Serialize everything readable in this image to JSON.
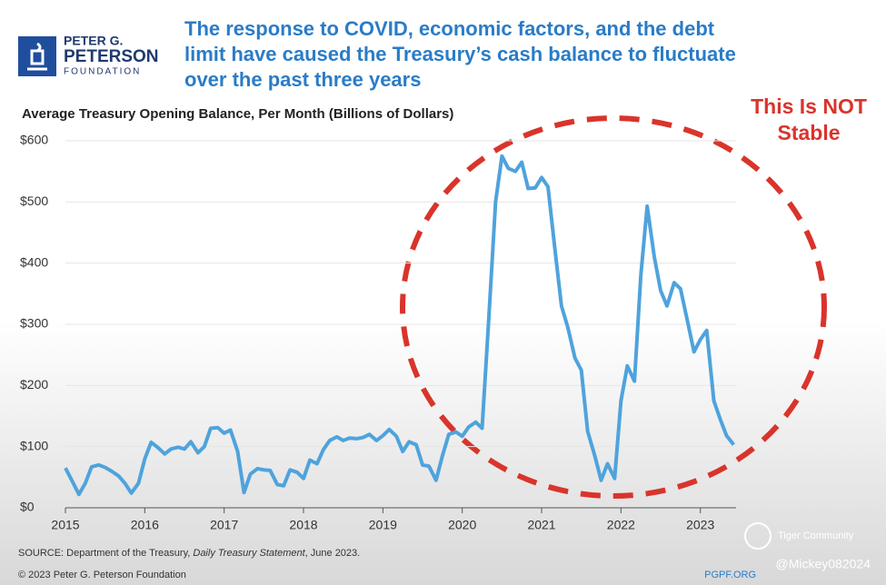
{
  "logo": {
    "line1": "PETER G.",
    "line2": "PETERSON",
    "line3": "FOUNDATION"
  },
  "chart_data": {
    "type": "line",
    "title": "The response to COVID, economic factors, and the debt limit have caused the Treasury’s cash balance to fluctuate over the past three years",
    "subtitle": "Average Treasury Opening Balance, Per Month (Billions of Dollars)",
    "annotation": "This Is NOT Stable",
    "x": [
      2015.0,
      2015.08,
      2015.17,
      2015.25,
      2015.33,
      2015.42,
      2015.5,
      2015.58,
      2015.67,
      2015.75,
      2015.83,
      2015.92,
      2016.0,
      2016.08,
      2016.17,
      2016.25,
      2016.33,
      2016.42,
      2016.5,
      2016.58,
      2016.67,
      2016.75,
      2016.83,
      2016.92,
      2017.0,
      2017.08,
      2017.17,
      2017.25,
      2017.33,
      2017.42,
      2017.5,
      2017.58,
      2017.67,
      2017.75,
      2017.83,
      2017.92,
      2018.0,
      2018.08,
      2018.17,
      2018.25,
      2018.33,
      2018.42,
      2018.5,
      2018.58,
      2018.67,
      2018.75,
      2018.83,
      2018.92,
      2019.0,
      2019.08,
      2019.17,
      2019.25,
      2019.33,
      2019.42,
      2019.5,
      2019.58,
      2019.67,
      2019.75,
      2019.83,
      2019.92,
      2020.0,
      2020.08,
      2020.17,
      2020.25,
      2020.33,
      2020.42,
      2020.5,
      2020.58,
      2020.67,
      2020.75,
      2020.83,
      2020.92,
      2021.0,
      2021.08,
      2021.17,
      2021.25,
      2021.33,
      2021.42,
      2021.5,
      2021.58,
      2021.67,
      2021.75,
      2021.83,
      2021.92,
      2022.0,
      2022.08,
      2022.17,
      2022.25,
      2022.33,
      2022.42,
      2022.5,
      2022.58,
      2022.67,
      2022.75,
      2022.83,
      2022.92,
      2023.0,
      2023.08,
      2023.17,
      2023.25,
      2023.33,
      2023.42
    ],
    "series": [
      {
        "color": "#4fa3dc",
        "values": [
          65,
          45,
          22,
          40,
          67,
          70,
          66,
          60,
          52,
          40,
          24,
          40,
          80,
          107,
          98,
          88,
          96,
          99,
          96,
          108,
          90,
          100,
          130,
          131,
          122,
          127,
          92,
          25,
          55,
          64,
          62,
          61,
          38,
          36,
          62,
          58,
          48,
          78,
          72,
          95,
          110,
          116,
          110,
          114,
          113,
          115,
          120,
          110,
          118,
          128,
          117,
          92,
          108,
          103,
          70,
          68,
          45,
          85,
          120,
          124,
          117,
          132,
          140,
          130,
          300,
          500,
          575,
          555,
          550,
          565,
          522,
          523,
          540,
          525,
          420,
          330,
          295,
          245,
          225,
          125,
          85,
          45,
          72,
          48,
          175,
          232,
          207,
          380,
          493,
          410,
          355,
          330,
          368,
          358,
          310,
          255,
          275,
          290,
          175,
          145,
          118,
          103
        ]
      }
    ],
    "xlim": [
      2015,
      2023.45
    ],
    "xticks": [
      2015,
      2016,
      2017,
      2018,
      2019,
      2020,
      2021,
      2022,
      2023
    ],
    "ylim": [
      0,
      600
    ],
    "yticks": [
      {
        "value": 0,
        "label": "$0"
      },
      {
        "value": 100,
        "label": "$100"
      },
      {
        "value": 200,
        "label": "$200"
      },
      {
        "value": 300,
        "label": "$300"
      },
      {
        "value": 400,
        "label": "$400"
      },
      {
        "value": 500,
        "label": "$500"
      },
      {
        "value": 600,
        "label": "$600"
      }
    ],
    "grid": true
  },
  "footer": {
    "source_prefix": "SOURCE: Department of the Treasury, ",
    "source_italic": "Daily Treasury Statement",
    "source_suffix": ", June 2023.",
    "copyright": "© 2023 Peter G. Peterson Foundation",
    "site": "PGPF.ORG"
  },
  "watermark": {
    "brand": "Tiger Community",
    "handle": "@Mickey082024"
  }
}
